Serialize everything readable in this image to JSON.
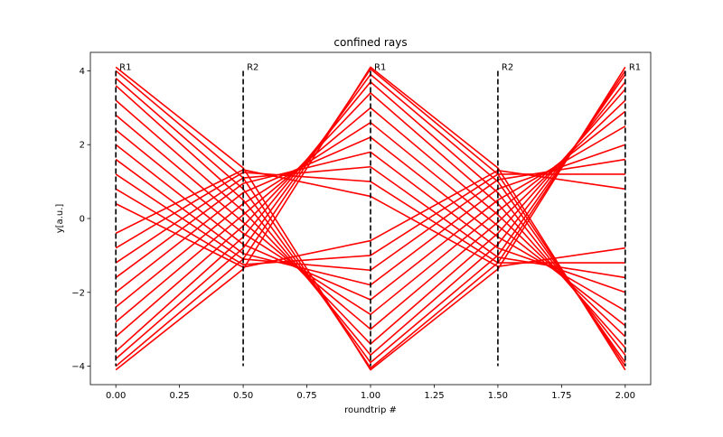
{
  "chart_data": {
    "type": "line",
    "title": "confined rays",
    "xlabel": "roundtrip #",
    "ylabel": "y[a.u.]",
    "xlim": [
      -0.1,
      2.1
    ],
    "ylim": [
      -4.5,
      4.5
    ],
    "xticks": [
      0.0,
      0.25,
      0.5,
      0.75,
      1.0,
      1.25,
      1.5,
      1.75,
      2.0
    ],
    "xtick_labels": [
      "0.00",
      "0.25",
      "0.50",
      "0.75",
      "1.00",
      "1.25",
      "1.50",
      "1.75",
      "2.00"
    ],
    "yticks": [
      -4,
      -2,
      0,
      2,
      4
    ],
    "ytick_labels": [
      "−4",
      "−2",
      "0",
      "2",
      "4"
    ],
    "grid": false,
    "legend": "none",
    "ray_color": "#ff0000",
    "mirror_color": "#000000",
    "mirror_positions": [
      0.0,
      0.5,
      1.0,
      1.5,
      2.0
    ],
    "mirror_labels": [
      "R1",
      "R2",
      "R1",
      "R2",
      "R1"
    ],
    "mirror_height": 4.0,
    "series": [
      {
        "x": [
          0.0,
          0.5,
          1.0,
          1.5,
          2.0
        ],
        "y": [
          4.1,
          1.37,
          -4.1,
          -1.37,
          4.1
        ]
      },
      {
        "x": [
          0.0,
          0.5,
          1.0,
          1.5,
          2.0
        ],
        "y": [
          -4.1,
          -1.37,
          4.1,
          1.37,
          -4.1
        ]
      },
      {
        "x": [
          0.0,
          0.5,
          1.0,
          1.5,
          2.0
        ],
        "y": [
          4.0,
          1.1,
          -4.05,
          -1.2,
          4.0
        ]
      },
      {
        "x": [
          0.0,
          0.5,
          1.0,
          1.5,
          2.0
        ],
        "y": [
          -4.0,
          -1.1,
          4.05,
          1.2,
          -4.0
        ]
      },
      {
        "x": [
          0.0,
          0.5,
          1.0,
          1.5,
          2.0
        ],
        "y": [
          3.8,
          0.8,
          -3.9,
          -1.0,
          3.9
        ]
      },
      {
        "x": [
          0.0,
          0.5,
          1.0,
          1.5,
          2.0
        ],
        "y": [
          -3.8,
          -0.8,
          3.9,
          1.0,
          -3.9
        ]
      },
      {
        "x": [
          0.0,
          0.5,
          1.0,
          1.5,
          2.0
        ],
        "y": [
          3.6,
          0.5,
          -3.7,
          -0.7,
          3.7
        ]
      },
      {
        "x": [
          0.0,
          0.5,
          1.0,
          1.5,
          2.0
        ],
        "y": [
          -3.6,
          -0.5,
          3.7,
          0.7,
          -3.7
        ]
      },
      {
        "x": [
          0.0,
          0.5,
          1.0,
          1.5,
          2.0
        ],
        "y": [
          3.2,
          0.2,
          -3.4,
          -0.4,
          3.5
        ]
      },
      {
        "x": [
          0.0,
          0.5,
          1.0,
          1.5,
          2.0
        ],
        "y": [
          -3.2,
          -0.2,
          3.4,
          0.4,
          -3.5
        ]
      },
      {
        "x": [
          0.0,
          0.5,
          1.0,
          1.5,
          2.0
        ],
        "y": [
          2.8,
          -0.1,
          -3.0,
          -0.1,
          3.2
        ]
      },
      {
        "x": [
          0.0,
          0.5,
          1.0,
          1.5,
          2.0
        ],
        "y": [
          -2.8,
          0.1,
          3.0,
          0.1,
          -3.2
        ]
      },
      {
        "x": [
          0.0,
          0.5,
          1.0,
          1.5,
          2.0
        ],
        "y": [
          2.4,
          -0.4,
          -2.6,
          0.2,
          2.9
        ]
      },
      {
        "x": [
          0.0,
          0.5,
          1.0,
          1.5,
          2.0
        ],
        "y": [
          -2.4,
          0.4,
          2.6,
          -0.2,
          -2.9
        ]
      },
      {
        "x": [
          0.0,
          0.5,
          1.0,
          1.5,
          2.0
        ],
        "y": [
          2.0,
          -0.7,
          -2.2,
          0.5,
          2.5
        ]
      },
      {
        "x": [
          0.0,
          0.5,
          1.0,
          1.5,
          2.0
        ],
        "y": [
          -2.0,
          0.7,
          2.2,
          -0.5,
          -2.5
        ]
      },
      {
        "x": [
          0.0,
          0.5,
          1.0,
          1.5,
          2.0
        ],
        "y": [
          1.6,
          -0.95,
          -1.8,
          0.8,
          2.0
        ]
      },
      {
        "x": [
          0.0,
          0.5,
          1.0,
          1.5,
          2.0
        ],
        "y": [
          -1.6,
          0.95,
          1.8,
          -0.8,
          -2.0
        ]
      },
      {
        "x": [
          0.0,
          0.5,
          1.0,
          1.5,
          2.0
        ],
        "y": [
          1.2,
          -1.1,
          -1.4,
          1.05,
          1.6
        ]
      },
      {
        "x": [
          0.0,
          0.5,
          1.0,
          1.5,
          2.0
        ],
        "y": [
          -1.2,
          1.1,
          1.4,
          -1.05,
          -1.6
        ]
      },
      {
        "x": [
          0.0,
          0.5,
          1.0,
          1.5,
          2.0
        ],
        "y": [
          0.8,
          -1.25,
          -1.0,
          1.2,
          1.2
        ]
      },
      {
        "x": [
          0.0,
          0.5,
          1.0,
          1.5,
          2.0
        ],
        "y": [
          -0.8,
          1.25,
          1.0,
          -1.2,
          -1.2
        ]
      },
      {
        "x": [
          0.0,
          0.5,
          1.0,
          1.5,
          2.0
        ],
        "y": [
          0.4,
          -1.32,
          -0.6,
          1.3,
          0.8
        ]
      },
      {
        "x": [
          0.0,
          0.5,
          1.0,
          1.5,
          2.0
        ],
        "y": [
          -0.4,
          1.32,
          0.6,
          -1.3,
          -0.8
        ]
      }
    ]
  }
}
